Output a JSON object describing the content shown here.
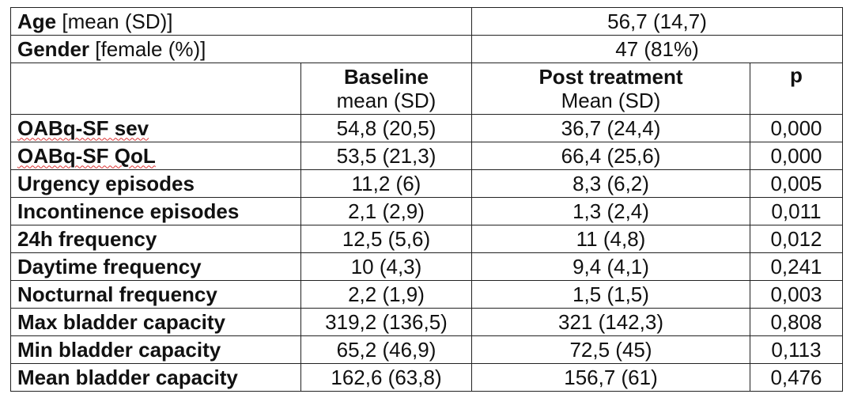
{
  "top_rows": [
    {
      "label_bold": "Age",
      "label_normal": " [mean (SD)]",
      "value": "56,7 (14,7)"
    },
    {
      "label_bold": "Gender",
      "label_normal": " [female (%)]",
      "value": "47 (81%)"
    }
  ],
  "headers": {
    "baseline_title": "Baseline",
    "baseline_sub": "mean (SD)",
    "post_title": "Post treatment",
    "post_sub": "Mean (SD)",
    "p_title": "p"
  },
  "rows": [
    {
      "label": "OABq-SF sev",
      "baseline": "54,8 (20,5)",
      "post": "36,7 (24,4)",
      "p": "0,000"
    },
    {
      "label": "OABq-SF QoL",
      "baseline": "53,5 (21,3)",
      "post": "66,4 (25,6)",
      "p": "0,000"
    },
    {
      "label": "Urgency episodes",
      "baseline": "11,2 (6)",
      "post": "8,3 (6,2)",
      "p": "0,005"
    },
    {
      "label": "Incontinence episodes",
      "baseline": "2,1 (2,9)",
      "post": "1,3 (2,4)",
      "p": "0,011"
    },
    {
      "label": "24h frequency",
      "baseline": "12,5 (5,6)",
      "post": "11 (4,8)",
      "p": "0,012"
    },
    {
      "label": "Daytime frequency",
      "baseline": "10 (4,3)",
      "post": "9,4 (4,1)",
      "p": "0,241"
    },
    {
      "label": "Nocturnal frequency",
      "baseline": "2,2 (1,9)",
      "post": "1,5 (1,5)",
      "p": "0,003"
    },
    {
      "label": "Max bladder capacity",
      "baseline": "319,2 (136,5)",
      "post": "321 (142,3)",
      "p": "0,808"
    },
    {
      "label": "Min bladder capacity",
      "baseline": "65,2 (46,9)",
      "post": "72,5 (45)",
      "p": "0,113"
    },
    {
      "label": "Mean bladder capacity",
      "baseline": "162,6 (63,8)",
      "post": "156,7 (61)",
      "p": "0,476"
    }
  ]
}
